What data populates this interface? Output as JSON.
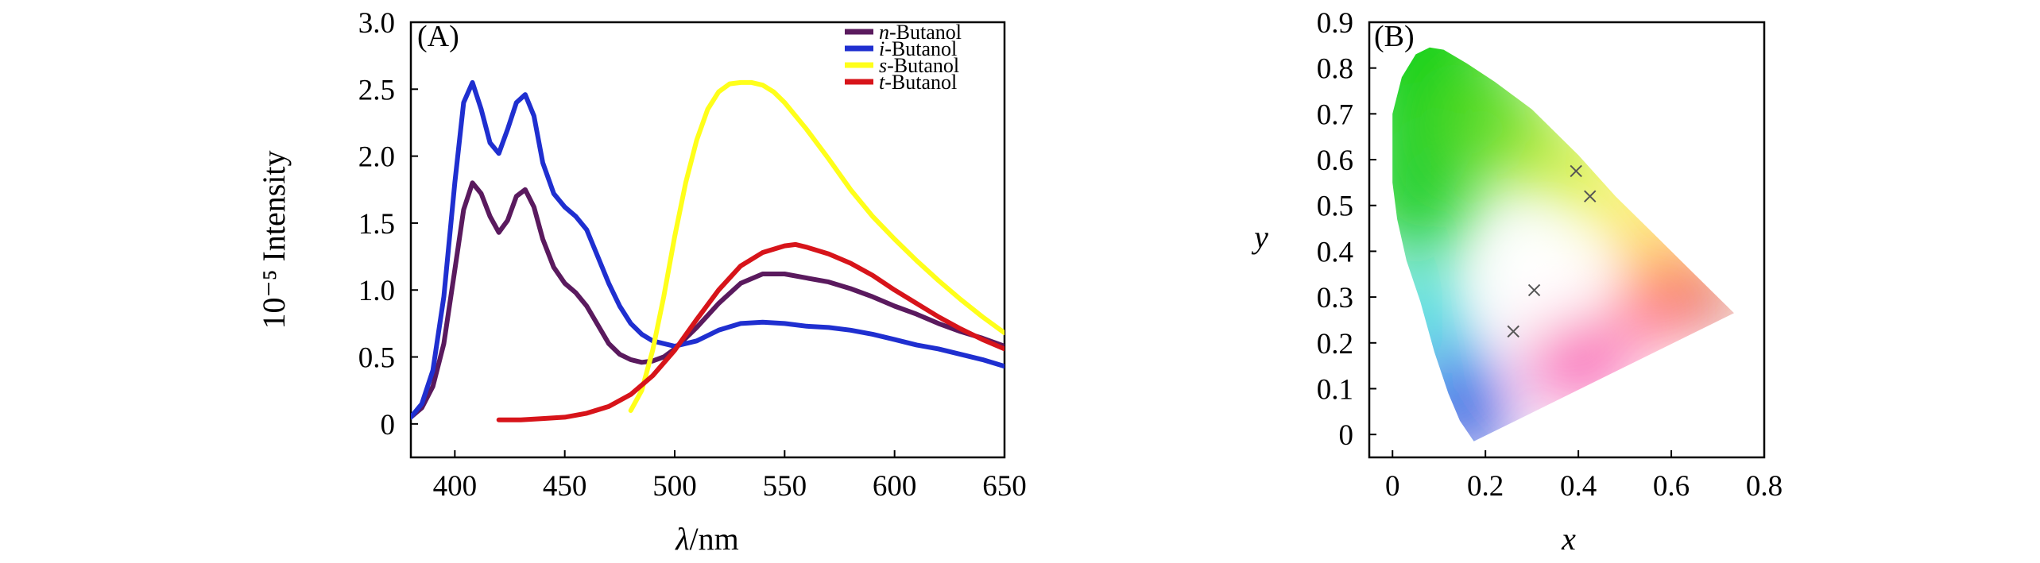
{
  "chart_data": [
    {
      "type": "line",
      "panel_label": "(A)",
      "xlabel": "λ/nm",
      "xlabel_symbol": "λ",
      "xlabel_unit": "/nm",
      "ylabel": "10⁻⁵ Intensity",
      "xlim": [
        380,
        650
      ],
      "ylim": [
        -0.25,
        3.0
      ],
      "xticks": [
        400,
        450,
        500,
        550,
        600,
        650
      ],
      "yticks": [
        0,
        0.5,
        1.0,
        1.5,
        2.0,
        2.5,
        3.0
      ],
      "ytick_labels": [
        "0",
        "0.5",
        "1.0",
        "1.5",
        "2.0",
        "2.5",
        "3.0"
      ],
      "legend_position": "top-right",
      "series": [
        {
          "name": "n-Butanol",
          "prefix": "n",
          "suffix": "-Butanol",
          "color": "#5a1a5e",
          "x": [
            380,
            385,
            390,
            395,
            400,
            404,
            408,
            412,
            416,
            420,
            424,
            428,
            432,
            436,
            440,
            445,
            450,
            455,
            460,
            465,
            470,
            475,
            480,
            485,
            490,
            495,
            500,
            510,
            520,
            530,
            540,
            550,
            560,
            570,
            580,
            590,
            600,
            610,
            620,
            630,
            640,
            650
          ],
          "y": [
            0.05,
            0.12,
            0.28,
            0.6,
            1.15,
            1.6,
            1.8,
            1.72,
            1.55,
            1.43,
            1.52,
            1.7,
            1.75,
            1.62,
            1.38,
            1.17,
            1.05,
            0.98,
            0.88,
            0.74,
            0.6,
            0.52,
            0.48,
            0.46,
            0.47,
            0.5,
            0.56,
            0.72,
            0.9,
            1.05,
            1.12,
            1.12,
            1.09,
            1.06,
            1.01,
            0.95,
            0.88,
            0.82,
            0.75,
            0.69,
            0.64,
            0.58
          ]
        },
        {
          "name": "i-Butanol",
          "prefix": "i",
          "suffix": "-Butanol",
          "color": "#1f2fd0",
          "x": [
            380,
            385,
            390,
            395,
            400,
            404,
            408,
            412,
            416,
            420,
            424,
            428,
            432,
            436,
            440,
            445,
            450,
            455,
            460,
            465,
            470,
            475,
            480,
            485,
            490,
            495,
            500,
            510,
            520,
            530,
            540,
            550,
            560,
            570,
            580,
            590,
            600,
            610,
            620,
            630,
            640,
            650
          ],
          "y": [
            0.05,
            0.15,
            0.4,
            0.95,
            1.8,
            2.4,
            2.55,
            2.35,
            2.1,
            2.02,
            2.2,
            2.4,
            2.46,
            2.3,
            1.95,
            1.72,
            1.62,
            1.55,
            1.45,
            1.25,
            1.05,
            0.88,
            0.75,
            0.67,
            0.62,
            0.6,
            0.58,
            0.62,
            0.7,
            0.75,
            0.76,
            0.75,
            0.73,
            0.72,
            0.7,
            0.67,
            0.63,
            0.59,
            0.56,
            0.52,
            0.48,
            0.43
          ]
        },
        {
          "name": "s-Butanol",
          "prefix": "s",
          "suffix": "-Butanol",
          "color": "#ffff1a",
          "x": [
            480,
            485,
            490,
            495,
            500,
            505,
            510,
            515,
            520,
            525,
            530,
            535,
            540,
            545,
            550,
            560,
            570,
            580,
            590,
            600,
            610,
            620,
            630,
            640,
            650
          ],
          "y": [
            0.1,
            0.25,
            0.55,
            0.95,
            1.4,
            1.8,
            2.12,
            2.35,
            2.48,
            2.54,
            2.55,
            2.55,
            2.53,
            2.48,
            2.4,
            2.2,
            1.98,
            1.75,
            1.55,
            1.38,
            1.22,
            1.07,
            0.93,
            0.8,
            0.68
          ]
        },
        {
          "name": "t-Butanol",
          "prefix": "t",
          "suffix": "-Butanol",
          "color": "#d7141a",
          "x": [
            420,
            430,
            440,
            450,
            460,
            470,
            480,
            490,
            500,
            510,
            520,
            530,
            540,
            550,
            555,
            560,
            570,
            580,
            590,
            600,
            610,
            620,
            630,
            640,
            650
          ],
          "y": [
            0.03,
            0.03,
            0.04,
            0.05,
            0.08,
            0.13,
            0.22,
            0.36,
            0.55,
            0.78,
            1.0,
            1.18,
            1.28,
            1.33,
            1.34,
            1.32,
            1.27,
            1.2,
            1.11,
            1.0,
            0.9,
            0.8,
            0.71,
            0.63,
            0.56
          ]
        }
      ]
    },
    {
      "type": "scatter",
      "panel_label": "(B)",
      "xlabel": "x",
      "ylabel": "y",
      "xlim": [
        -0.05,
        0.8
      ],
      "ylim": [
        -0.05,
        0.9
      ],
      "xticks": [
        0,
        0.2,
        0.4,
        0.6,
        0.8
      ],
      "xtick_labels": [
        "0",
        "0.2",
        "0.4",
        "0.6",
        "0.8"
      ],
      "yticks": [
        0,
        0.1,
        0.2,
        0.3,
        0.4,
        0.5,
        0.6,
        0.7,
        0.8,
        0.9
      ],
      "ytick_labels": [
        "0",
        "0.1",
        "0.2",
        "0.3",
        "0.4",
        "0.5",
        "0.6",
        "0.7",
        "0.8",
        "0.9"
      ],
      "background": "CIE 1931 chromaticity diagram",
      "gamut_outline": [
        [
          0.175,
          -0.015
        ],
        [
          0.145,
          0.03
        ],
        [
          0.12,
          0.09
        ],
        [
          0.09,
          0.18
        ],
        [
          0.06,
          0.29
        ],
        [
          0.03,
          0.38
        ],
        [
          0.01,
          0.47
        ],
        [
          0.0,
          0.55
        ],
        [
          0.0,
          0.7
        ],
        [
          0.02,
          0.78
        ],
        [
          0.05,
          0.83
        ],
        [
          0.08,
          0.845
        ],
        [
          0.11,
          0.84
        ],
        [
          0.16,
          0.81
        ],
        [
          0.22,
          0.77
        ],
        [
          0.3,
          0.71
        ],
        [
          0.4,
          0.61
        ],
        [
          0.48,
          0.52
        ],
        [
          0.56,
          0.44
        ],
        [
          0.64,
          0.36
        ],
        [
          0.735,
          0.265
        ]
      ],
      "colors": {
        "red_corner": "#a00000",
        "blue_corner": "#0022d0",
        "green_top": "#19d21e",
        "white_point": "#ffffff"
      },
      "points": [
        {
          "x": 0.26,
          "y": 0.225,
          "marker": "x"
        },
        {
          "x": 0.305,
          "y": 0.315,
          "marker": "x"
        },
        {
          "x": 0.395,
          "y": 0.575,
          "marker": "x"
        },
        {
          "x": 0.425,
          "y": 0.52,
          "marker": "x"
        }
      ]
    }
  ]
}
